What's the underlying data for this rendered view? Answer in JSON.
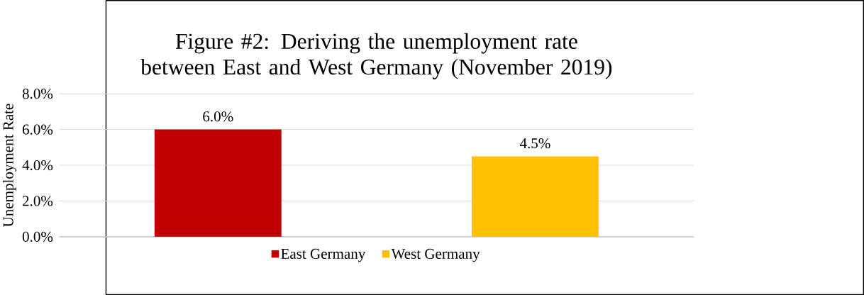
{
  "chart_data": {
    "type": "bar",
    "title": "Figure #2: Deriving the unemployment rate between East and West Germany (November 2019)",
    "ylabel": "Unemployment Rate",
    "categories": [
      null,
      null
    ],
    "series": [
      {
        "name": "East Germany",
        "color": "#c00000",
        "values": [
          6.0,
          null
        ],
        "value_labels": [
          "6.0%",
          null
        ]
      },
      {
        "name": "West Germany",
        "color": "#ffc000",
        "values": [
          null,
          4.5
        ],
        "value_labels": [
          null,
          "4.5%"
        ]
      }
    ],
    "ylim": [
      0,
      8
    ],
    "yticks": [
      {
        "value": 0,
        "label": "0.0%"
      },
      {
        "value": 2,
        "label": "2.0%"
      },
      {
        "value": 4,
        "label": "4.0%"
      },
      {
        "value": 6,
        "label": "6.0%"
      },
      {
        "value": 8,
        "label": "8.0%"
      }
    ],
    "grid": "y",
    "legend": "bottom"
  }
}
